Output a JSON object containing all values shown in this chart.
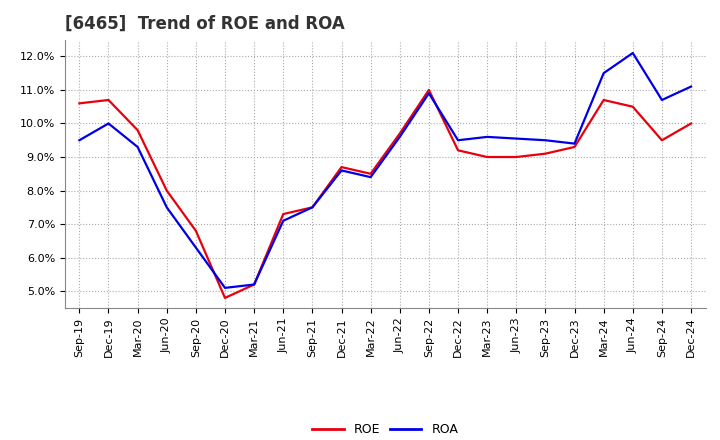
{
  "title": "[6465]  Trend of ROE and ROA",
  "x_labels": [
    "Sep-19",
    "Dec-19",
    "Mar-20",
    "Jun-20",
    "Sep-20",
    "Dec-20",
    "Mar-21",
    "Jun-21",
    "Sep-21",
    "Dec-21",
    "Mar-22",
    "Jun-22",
    "Sep-22",
    "Dec-22",
    "Mar-23",
    "Jun-23",
    "Sep-23",
    "Dec-23",
    "Mar-24",
    "Jun-24",
    "Sep-24",
    "Dec-24"
  ],
  "roe": [
    10.6,
    10.7,
    9.8,
    8.0,
    6.8,
    4.8,
    5.2,
    7.3,
    7.5,
    8.7,
    8.5,
    9.7,
    11.0,
    9.2,
    9.0,
    9.0,
    9.1,
    9.3,
    10.7,
    10.5,
    9.5,
    10.0
  ],
  "roa": [
    9.5,
    10.0,
    9.3,
    7.5,
    6.3,
    5.1,
    5.2,
    7.1,
    7.5,
    8.6,
    8.4,
    9.6,
    10.9,
    9.5,
    9.6,
    9.55,
    9.5,
    9.4,
    11.5,
    12.1,
    10.7,
    11.1
  ],
  "roe_color": "#e8000d",
  "roa_color": "#0000e8",
  "bg_color": "#ffffff",
  "grid_color": "#aaaaaa",
  "ylim": [
    4.5,
    12.5
  ],
  "yticks": [
    5.0,
    6.0,
    7.0,
    8.0,
    9.0,
    10.0,
    11.0,
    12.0
  ],
  "linewidth": 1.6,
  "legend_labels": [
    "ROE",
    "ROA"
  ],
  "title_fontsize": 12,
  "tick_fontsize": 8
}
